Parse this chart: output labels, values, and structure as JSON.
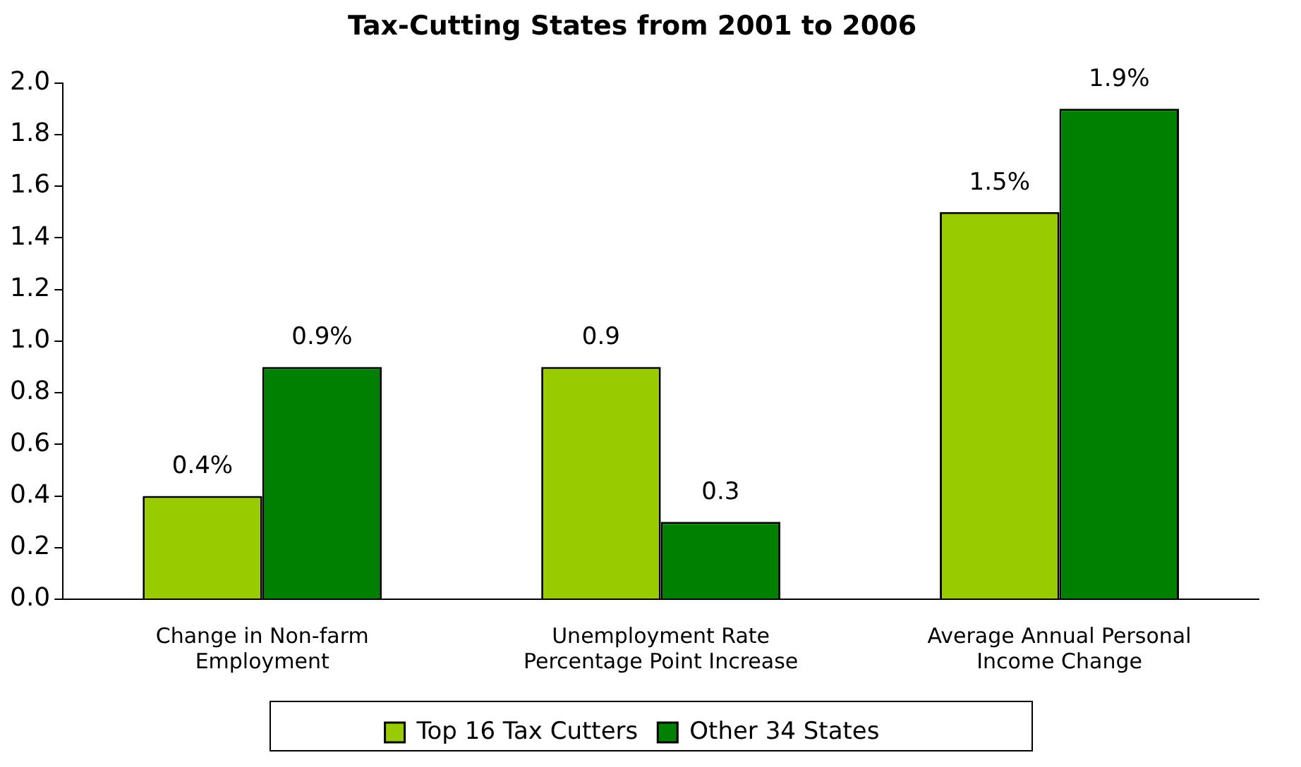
{
  "chart_data": {
    "type": "bar",
    "title": "Tax-Cutting States from 2001 to 2006",
    "categories": [
      "Change in Non-farm Employment",
      "Unemployment Rate Percentage Point Increase",
      "Average Annual Personal Income Change"
    ],
    "series": [
      {
        "name": "Top 16 Tax Cutters",
        "color": "#99cc00",
        "values": [
          0.4,
          0.9,
          1.5
        ],
        "value_labels": [
          "0.4%",
          "0.9",
          "1.5%"
        ]
      },
      {
        "name": "Other 34 States",
        "color": "#008000",
        "values": [
          0.9,
          0.3,
          1.9
        ],
        "value_labels": [
          "0.9%",
          "0.3",
          "1.9%"
        ]
      }
    ],
    "ylim": [
      0,
      2
    ],
    "yticks": [
      {
        "value": 0,
        "label": "0.0"
      },
      {
        "value": 0.2,
        "label": "0.2"
      },
      {
        "value": 0.4,
        "label": "0.4"
      },
      {
        "value": 0.6,
        "label": "0.6"
      },
      {
        "value": 0.8,
        "label": "0.8"
      },
      {
        "value": 1,
        "label": "1.0"
      },
      {
        "value": 1.2,
        "label": "1.2"
      },
      {
        "value": 1.4,
        "label": "1.4"
      },
      {
        "value": 1.6,
        "label": "1.6"
      },
      {
        "value": 1.8,
        "label": "1.8"
      },
      {
        "value": 2,
        "label": "2.0"
      }
    ],
    "grid": false,
    "legend": "bottom"
  }
}
